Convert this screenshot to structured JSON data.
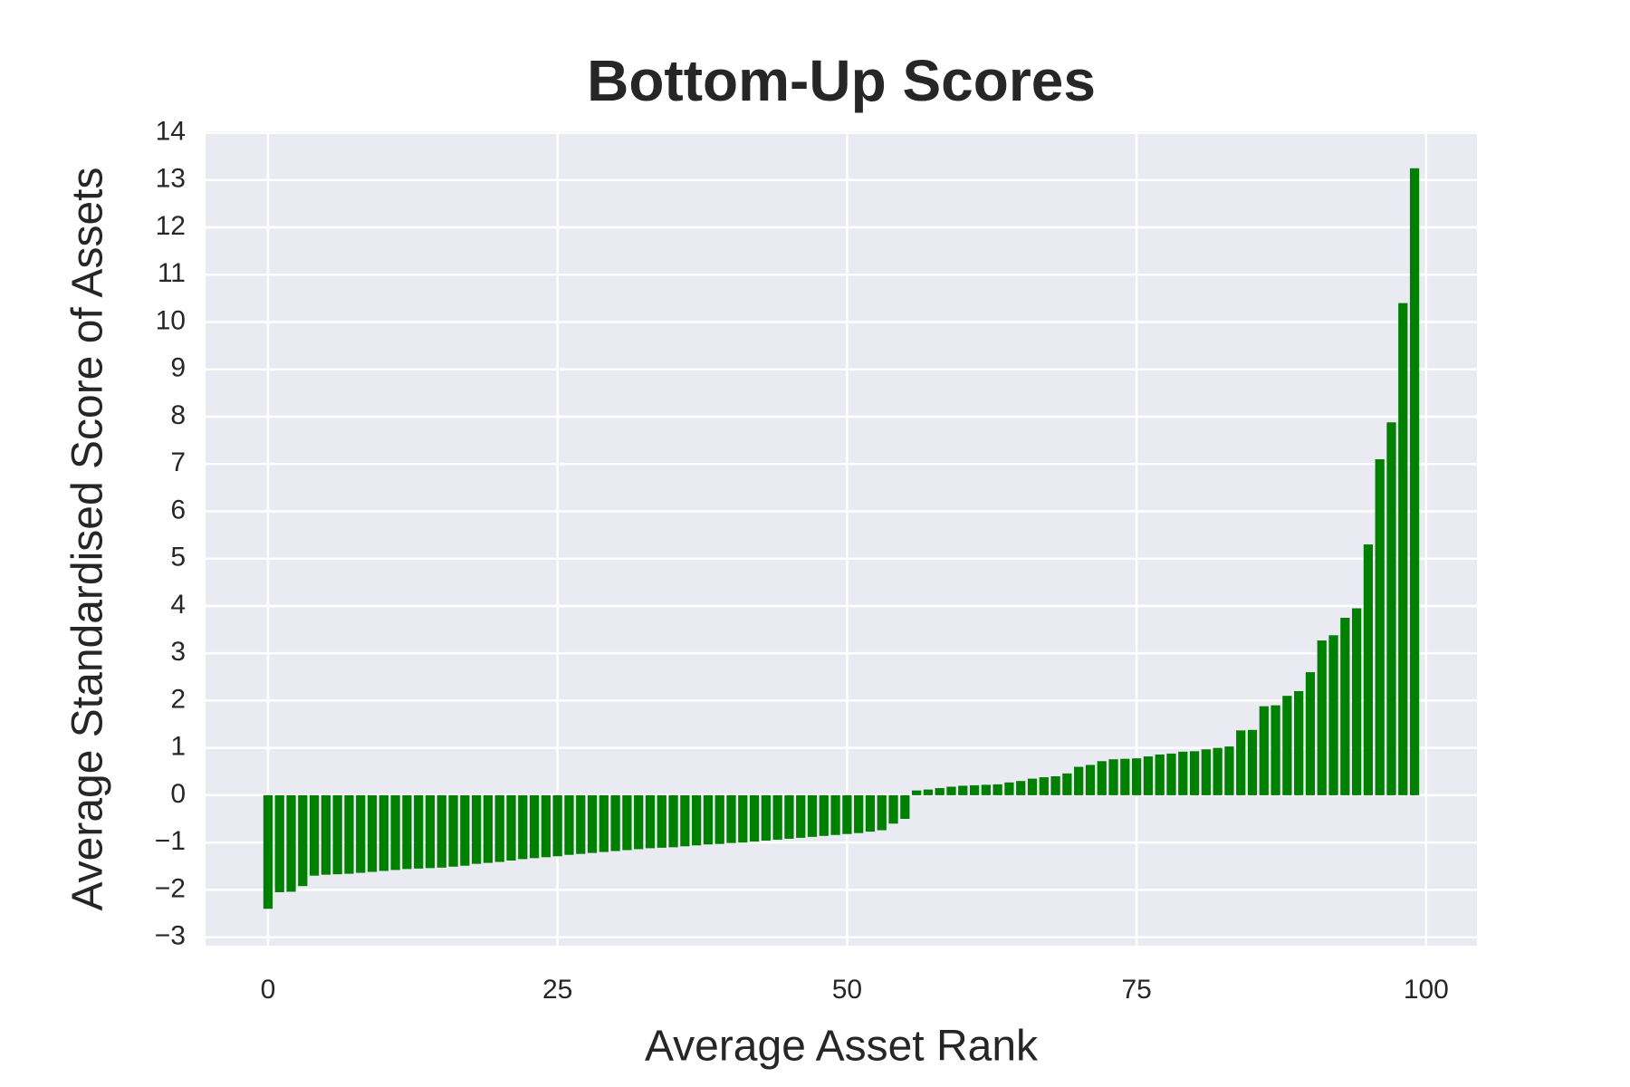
{
  "chart_data": {
    "type": "bar",
    "title": "Bottom-Up Scores",
    "x_label": "Average Asset Rank",
    "y_label": "Average Standardised Score of Assets",
    "color": "#008000",
    "background": "#eaeaf2",
    "grid": true,
    "x": [
      0,
      1,
      2,
      3,
      4,
      5,
      6,
      7,
      8,
      9,
      10,
      11,
      12,
      13,
      14,
      15,
      16,
      17,
      18,
      19,
      20,
      21,
      22,
      23,
      24,
      25,
      26,
      27,
      28,
      29,
      30,
      31,
      32,
      33,
      34,
      35,
      36,
      37,
      38,
      39,
      40,
      41,
      42,
      43,
      44,
      45,
      46,
      47,
      48,
      49,
      50,
      51,
      52,
      53,
      54,
      55,
      56,
      57,
      58,
      59,
      60,
      61,
      62,
      63,
      64,
      65,
      66,
      67,
      68,
      69,
      70,
      71,
      72,
      73,
      74,
      75,
      76,
      77,
      78,
      79,
      80,
      81,
      82,
      83,
      84,
      85,
      86,
      87,
      88,
      89,
      90,
      91,
      92,
      93,
      94,
      95,
      96,
      97,
      98,
      99
    ],
    "values": [
      -2.4,
      -2.05,
      -2.04,
      -1.92,
      -1.7,
      -1.68,
      -1.67,
      -1.66,
      -1.64,
      -1.62,
      -1.6,
      -1.58,
      -1.56,
      -1.55,
      -1.54,
      -1.53,
      -1.51,
      -1.49,
      -1.45,
      -1.43,
      -1.41,
      -1.38,
      -1.35,
      -1.33,
      -1.31,
      -1.29,
      -1.26,
      -1.24,
      -1.22,
      -1.2,
      -1.18,
      -1.16,
      -1.14,
      -1.12,
      -1.11,
      -1.1,
      -1.08,
      -1.06,
      -1.04,
      -1.03,
      -1.01,
      -1.0,
      -0.98,
      -0.96,
      -0.94,
      -0.92,
      -0.9,
      -0.88,
      -0.86,
      -0.84,
      -0.82,
      -0.8,
      -0.77,
      -0.74,
      -0.6,
      -0.5,
      0.1,
      0.12,
      0.15,
      0.18,
      0.2,
      0.21,
      0.22,
      0.23,
      0.27,
      0.3,
      0.35,
      0.38,
      0.4,
      0.46,
      0.6,
      0.64,
      0.72,
      0.76,
      0.77,
      0.78,
      0.82,
      0.86,
      0.88,
      0.92,
      0.93,
      0.97,
      1.0,
      1.03,
      1.37,
      1.38,
      1.88,
      1.9,
      2.1,
      2.2,
      2.6,
      3.27,
      3.38,
      3.75,
      3.95,
      5.3,
      7.1,
      7.88,
      10.4,
      13.25
    ],
    "xlim": [
      -5.39,
      104.39
    ],
    "xticks": [
      0,
      25,
      50,
      75,
      100
    ],
    "ylim": [
      -3.18,
      14.03
    ],
    "yticks": [
      {
        "value": -3,
        "label": "−3"
      },
      {
        "value": -2,
        "label": "−2"
      },
      {
        "value": -1,
        "label": "−1"
      },
      0,
      1,
      2,
      3,
      4,
      5,
      6,
      7,
      8,
      9,
      10,
      11,
      12,
      13,
      14
    ]
  }
}
